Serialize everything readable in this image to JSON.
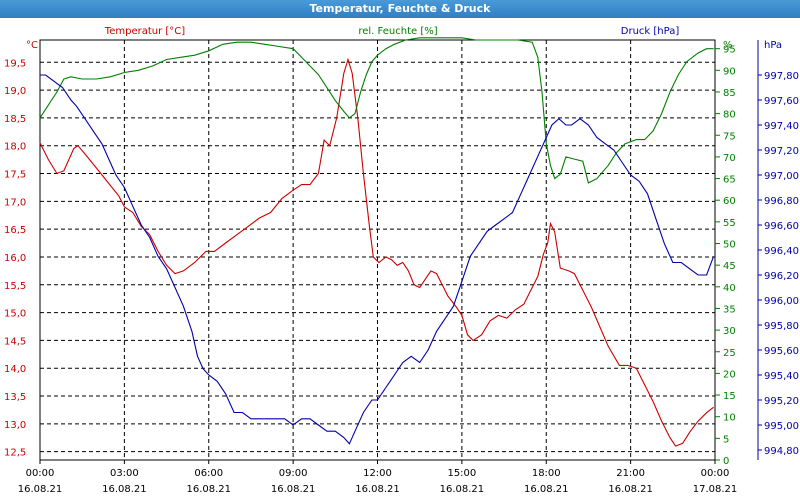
{
  "title": "Temperatur, Feuchte & Druck",
  "colors": {
    "temperature": "#cc0000",
    "humidity": "#008000",
    "pressure": "#0000aa",
    "grid": "#000000",
    "titlebar": "#3a8bd0"
  },
  "chart_data": {
    "type": "line",
    "title": "Temperatur, Feuchte & Druck",
    "grid": true,
    "x": {
      "range_hours": [
        0,
        24
      ],
      "ticks": [
        {
          "h": 0,
          "time": "00:00",
          "date": "16.08.21"
        },
        {
          "h": 3,
          "time": "03:00",
          "date": "16.08.21"
        },
        {
          "h": 6,
          "time": "06:00",
          "date": "16.08.21"
        },
        {
          "h": 9,
          "time": "09:00",
          "date": "16.08.21"
        },
        {
          "h": 12,
          "time": "12:00",
          "date": "16.08.21"
        },
        {
          "h": 15,
          "time": "15:00",
          "date": "16.08.21"
        },
        {
          "h": 18,
          "time": "18:00",
          "date": "16.08.21"
        },
        {
          "h": 21,
          "time": "21:00",
          "date": "16.08.21"
        },
        {
          "h": 24,
          "time": "00:00",
          "date": "17.08.21"
        }
      ]
    },
    "axes": {
      "temperature": {
        "unit": "°C",
        "label": "Temperatur [°C]",
        "range": [
          12.35,
          19.9
        ],
        "ticks": [
          12.5,
          13.0,
          13.5,
          14.0,
          14.5,
          15.0,
          15.5,
          16.0,
          16.5,
          17.0,
          17.5,
          18.0,
          18.5,
          19.0,
          19.5
        ],
        "tick_labels": [
          "12,5",
          "13,0",
          "13,5",
          "14,0",
          "14,5",
          "15,0",
          "15,5",
          "16,0",
          "16,5",
          "17,0",
          "17,5",
          "18,0",
          "18,5",
          "19,0",
          "19,5"
        ]
      },
      "humidity": {
        "unit": "%",
        "label": "rel. Feuchte [%]",
        "range": [
          0,
          97
        ],
        "ticks": [
          0,
          5,
          10,
          15,
          20,
          25,
          30,
          35,
          40,
          45,
          50,
          55,
          60,
          65,
          70,
          75,
          80,
          85,
          90,
          95
        ],
        "tick_labels": [
          "0",
          "5",
          "10",
          "15",
          "20",
          "25",
          "30",
          "35",
          "40",
          "45",
          "50",
          "55",
          "60",
          "65",
          "70",
          "75",
          "80",
          "85",
          "90",
          "95"
        ]
      },
      "pressure": {
        "unit": "hPa",
        "label": "Druck [hPa]",
        "range": [
          994.72,
          998.08
        ],
        "ticks": [
          994.8,
          995.0,
          995.2,
          995.4,
          995.6,
          995.8,
          996.0,
          996.2,
          996.4,
          996.6,
          996.8,
          997.0,
          997.2,
          997.4,
          997.6,
          997.8
        ],
        "tick_labels": [
          "994,80",
          "995,00",
          "995,20",
          "995,40",
          "995,60",
          "995,80",
          "996,00",
          "996,20",
          "996,40",
          "996,60",
          "996,80",
          "997,00",
          "997,20",
          "997,40",
          "997,60",
          "997,80"
        ]
      }
    },
    "series": [
      {
        "name": "Temperatur [°C]",
        "axis": "temperature",
        "points": [
          [
            0,
            18.05
          ],
          [
            0.3,
            17.75
          ],
          [
            0.6,
            17.5
          ],
          [
            0.85,
            17.55
          ],
          [
            1.2,
            17.95
          ],
          [
            1.35,
            18.0
          ],
          [
            1.6,
            17.85
          ],
          [
            2.0,
            17.6
          ],
          [
            2.4,
            17.35
          ],
          [
            2.8,
            17.1
          ],
          [
            3.0,
            16.9
          ],
          [
            3.3,
            16.8
          ],
          [
            3.6,
            16.55
          ],
          [
            3.9,
            16.4
          ],
          [
            4.2,
            16.1
          ],
          [
            4.5,
            15.85
          ],
          [
            4.8,
            15.7
          ],
          [
            5.1,
            15.75
          ],
          [
            5.5,
            15.9
          ],
          [
            5.9,
            16.1
          ],
          [
            6.2,
            16.1
          ],
          [
            6.6,
            16.25
          ],
          [
            7.0,
            16.4
          ],
          [
            7.4,
            16.55
          ],
          [
            7.8,
            16.7
          ],
          [
            8.2,
            16.8
          ],
          [
            8.6,
            17.05
          ],
          [
            9.0,
            17.2
          ],
          [
            9.3,
            17.3
          ],
          [
            9.6,
            17.3
          ],
          [
            9.9,
            17.5
          ],
          [
            10.0,
            17.8
          ],
          [
            10.1,
            18.1
          ],
          [
            10.3,
            18.0
          ],
          [
            10.55,
            18.5
          ],
          [
            10.8,
            19.3
          ],
          [
            10.95,
            19.55
          ],
          [
            11.1,
            19.3
          ],
          [
            11.3,
            18.5
          ],
          [
            11.5,
            17.5
          ],
          [
            11.7,
            16.6
          ],
          [
            11.85,
            16.0
          ],
          [
            12.05,
            15.9
          ],
          [
            12.3,
            16.0
          ],
          [
            12.5,
            15.95
          ],
          [
            12.7,
            15.85
          ],
          [
            12.9,
            15.9
          ],
          [
            13.1,
            15.75
          ],
          [
            13.3,
            15.5
          ],
          [
            13.5,
            15.45
          ],
          [
            13.7,
            15.6
          ],
          [
            13.9,
            15.75
          ],
          [
            14.1,
            15.7
          ],
          [
            14.3,
            15.5
          ],
          [
            14.5,
            15.3
          ],
          [
            14.8,
            15.1
          ],
          [
            15.0,
            14.95
          ],
          [
            15.2,
            14.6
          ],
          [
            15.4,
            14.5
          ],
          [
            15.7,
            14.6
          ],
          [
            16.0,
            14.85
          ],
          [
            16.3,
            14.95
          ],
          [
            16.6,
            14.9
          ],
          [
            16.9,
            15.05
          ],
          [
            17.2,
            15.15
          ],
          [
            17.45,
            15.4
          ],
          [
            17.7,
            15.65
          ],
          [
            17.9,
            16.05
          ],
          [
            18.05,
            16.25
          ],
          [
            18.15,
            16.6
          ],
          [
            18.3,
            16.45
          ],
          [
            18.5,
            15.8
          ],
          [
            18.8,
            15.75
          ],
          [
            19.0,
            15.7
          ],
          [
            19.3,
            15.4
          ],
          [
            19.6,
            15.1
          ],
          [
            19.9,
            14.75
          ],
          [
            20.2,
            14.4
          ],
          [
            20.6,
            14.05
          ],
          [
            20.9,
            14.05
          ],
          [
            21.2,
            14.0
          ],
          [
            21.5,
            13.7
          ],
          [
            21.8,
            13.4
          ],
          [
            22.1,
            13.05
          ],
          [
            22.4,
            12.75
          ],
          [
            22.6,
            12.6
          ],
          [
            22.85,
            12.65
          ],
          [
            23.1,
            12.85
          ],
          [
            23.4,
            13.05
          ],
          [
            23.7,
            13.2
          ],
          [
            23.95,
            13.3
          ]
        ]
      },
      {
        "name": "rel. Feuchte [%]",
        "axis": "humidity",
        "points": [
          [
            0,
            79
          ],
          [
            0.3,
            82
          ],
          [
            0.6,
            85
          ],
          [
            0.85,
            88
          ],
          [
            1.1,
            88.5
          ],
          [
            1.5,
            88
          ],
          [
            2.0,
            88
          ],
          [
            2.5,
            88.5
          ],
          [
            3.0,
            89.5
          ],
          [
            3.5,
            90
          ],
          [
            4.0,
            91
          ],
          [
            4.5,
            92.5
          ],
          [
            5.0,
            93
          ],
          [
            5.5,
            93.5
          ],
          [
            6.0,
            94.5
          ],
          [
            6.5,
            96
          ],
          [
            7.0,
            96.5
          ],
          [
            7.5,
            96.5
          ],
          [
            8.0,
            96
          ],
          [
            8.5,
            95.5
          ],
          [
            9.0,
            95
          ],
          [
            9.3,
            93
          ],
          [
            9.6,
            91
          ],
          [
            9.9,
            89
          ],
          [
            10.2,
            86
          ],
          [
            10.5,
            83
          ],
          [
            10.8,
            80.5
          ],
          [
            11.0,
            79
          ],
          [
            11.2,
            80
          ],
          [
            11.4,
            85
          ],
          [
            11.6,
            89
          ],
          [
            11.8,
            92
          ],
          [
            12.0,
            93.5
          ],
          [
            12.3,
            95
          ],
          [
            12.6,
            96
          ],
          [
            13.0,
            97
          ],
          [
            13.5,
            97.5
          ],
          [
            14.0,
            97.5
          ],
          [
            14.5,
            97.5
          ],
          [
            15.0,
            97.5
          ],
          [
            15.5,
            97
          ],
          [
            16.0,
            97
          ],
          [
            16.5,
            97
          ],
          [
            17.0,
            97
          ],
          [
            17.5,
            96.5
          ],
          [
            17.7,
            93
          ],
          [
            17.85,
            85
          ],
          [
            18.0,
            73
          ],
          [
            18.15,
            68
          ],
          [
            18.3,
            65
          ],
          [
            18.5,
            66
          ],
          [
            18.7,
            70
          ],
          [
            19.0,
            69.5
          ],
          [
            19.3,
            69
          ],
          [
            19.5,
            64
          ],
          [
            19.8,
            65
          ],
          [
            20.2,
            68
          ],
          [
            20.5,
            71
          ],
          [
            20.8,
            73
          ],
          [
            21.2,
            74
          ],
          [
            21.5,
            74
          ],
          [
            21.8,
            76
          ],
          [
            22.1,
            80
          ],
          [
            22.4,
            85
          ],
          [
            22.7,
            89
          ],
          [
            23.0,
            92
          ],
          [
            23.4,
            94
          ],
          [
            23.7,
            95
          ],
          [
            23.95,
            95
          ]
        ]
      },
      {
        "name": "Druck [hPa]",
        "axis": "pressure",
        "points": [
          [
            0,
            997.8
          ],
          [
            0.2,
            997.8
          ],
          [
            0.5,
            997.75
          ],
          [
            0.8,
            997.7
          ],
          [
            1.1,
            997.6
          ],
          [
            1.3,
            997.55
          ],
          [
            1.6,
            997.45
          ],
          [
            1.9,
            997.35
          ],
          [
            2.2,
            997.25
          ],
          [
            2.5,
            997.1
          ],
          [
            2.7,
            997.0
          ],
          [
            3.0,
            996.9
          ],
          [
            3.3,
            996.75
          ],
          [
            3.6,
            996.6
          ],
          [
            3.9,
            996.5
          ],
          [
            4.2,
            996.35
          ],
          [
            4.5,
            996.25
          ],
          [
            4.8,
            996.1
          ],
          [
            5.1,
            995.95
          ],
          [
            5.4,
            995.75
          ],
          [
            5.6,
            995.55
          ],
          [
            5.8,
            995.45
          ],
          [
            6.0,
            995.4
          ],
          [
            6.3,
            995.35
          ],
          [
            6.6,
            995.25
          ],
          [
            6.9,
            995.1
          ],
          [
            7.2,
            995.1
          ],
          [
            7.5,
            995.05
          ],
          [
            7.9,
            995.05
          ],
          [
            8.3,
            995.05
          ],
          [
            8.7,
            995.05
          ],
          [
            9.0,
            995.0
          ],
          [
            9.3,
            995.05
          ],
          [
            9.6,
            995.05
          ],
          [
            9.9,
            995.0
          ],
          [
            10.2,
            994.95
          ],
          [
            10.5,
            994.95
          ],
          [
            10.8,
            994.9
          ],
          [
            11.0,
            994.85
          ],
          [
            11.2,
            994.95
          ],
          [
            11.5,
            995.1
          ],
          [
            11.8,
            995.2
          ],
          [
            12.0,
            995.2
          ],
          [
            12.3,
            995.3
          ],
          [
            12.6,
            995.4
          ],
          [
            12.9,
            995.5
          ],
          [
            13.2,
            995.55
          ],
          [
            13.5,
            995.5
          ],
          [
            13.8,
            995.6
          ],
          [
            14.1,
            995.75
          ],
          [
            14.4,
            995.85
          ],
          [
            14.7,
            995.95
          ],
          [
            15.0,
            996.15
          ],
          [
            15.3,
            996.35
          ],
          [
            15.6,
            996.45
          ],
          [
            15.9,
            996.55
          ],
          [
            16.2,
            996.6
          ],
          [
            16.5,
            996.65
          ],
          [
            16.8,
            996.7
          ],
          [
            17.1,
            996.85
          ],
          [
            17.4,
            997.0
          ],
          [
            17.7,
            997.15
          ],
          [
            18.0,
            997.3
          ],
          [
            18.2,
            997.4
          ],
          [
            18.45,
            997.45
          ],
          [
            18.7,
            997.4
          ],
          [
            18.9,
            997.4
          ],
          [
            19.2,
            997.45
          ],
          [
            19.5,
            997.4
          ],
          [
            19.8,
            997.3
          ],
          [
            20.1,
            997.25
          ],
          [
            20.4,
            997.2
          ],
          [
            20.7,
            997.1
          ],
          [
            21.0,
            997.0
          ],
          [
            21.3,
            996.95
          ],
          [
            21.6,
            996.85
          ],
          [
            21.9,
            996.65
          ],
          [
            22.2,
            996.45
          ],
          [
            22.5,
            996.3
          ],
          [
            22.8,
            996.3
          ],
          [
            23.1,
            996.25
          ],
          [
            23.4,
            996.2
          ],
          [
            23.7,
            996.2
          ],
          [
            23.95,
            996.35
          ]
        ]
      }
    ]
  }
}
